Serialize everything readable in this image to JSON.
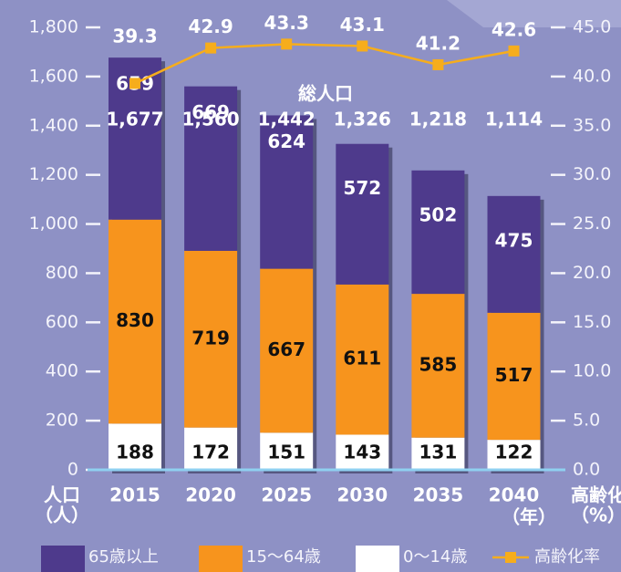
{
  "chart_data": {
    "type": "bar",
    "categories": [
      "2015",
      "2020",
      "2025",
      "2030",
      "2035",
      "2040"
    ],
    "series": [
      {
        "name": "0～14歳",
        "color": "#ffffff",
        "values": [
          188,
          172,
          151,
          143,
          131,
          122
        ]
      },
      {
        "name": "15～64歳",
        "color": "#f7941d",
        "values": [
          830,
          719,
          667,
          611,
          585,
          517
        ]
      },
      {
        "name": "65歳以上",
        "color": "#4e3a8c",
        "values": [
          659,
          669,
          624,
          572,
          502,
          475
        ]
      },
      {
        "name": "高齢化率",
        "color": "#f6ad1c",
        "type": "line",
        "axis": "y2",
        "values": [
          39.3,
          42.9,
          43.3,
          43.1,
          41.2,
          42.6
        ]
      }
    ],
    "totals_name": "総人口",
    "totals": [
      1677,
      1560,
      1442,
      1326,
      1218,
      1114
    ],
    "totals_labels": [
      "1,677",
      "1,560",
      "1,442",
      "1,326",
      "1,218",
      "1,114"
    ],
    "ylabel": [
      "人口",
      "（人）"
    ],
    "y2label": [
      "高齢化率",
      "（%）"
    ],
    "xlabel": "（年）",
    "ylim": [
      0,
      1800
    ],
    "yticks": [
      0,
      200,
      400,
      600,
      800,
      {
        "value": 1000,
        "label": "1,000"
      },
      {
        "value": 1200,
        "label": "1,200"
      },
      {
        "value": 1400,
        "label": "1,400"
      },
      {
        "value": 1600,
        "label": "1,600"
      },
      {
        "value": 1800,
        "label": "1,800"
      }
    ],
    "y2lim": [
      0,
      45
    ],
    "y2ticks": [
      {
        "value": 0,
        "label": "0.0"
      },
      {
        "value": 5,
        "label": "5.0"
      },
      {
        "value": 10,
        "label": "10.0"
      },
      {
        "value": 15,
        "label": "15.0"
      },
      {
        "value": 20,
        "label": "20.0"
      },
      {
        "value": 25,
        "label": "25.0"
      },
      {
        "value": 30,
        "label": "30.0"
      },
      {
        "value": 35,
        "label": "35.0"
      },
      {
        "value": 40,
        "label": "40.0"
      },
      {
        "value": 45,
        "label": "45.0"
      }
    ],
    "legend_order": [
      2,
      1,
      0,
      3
    ]
  }
}
